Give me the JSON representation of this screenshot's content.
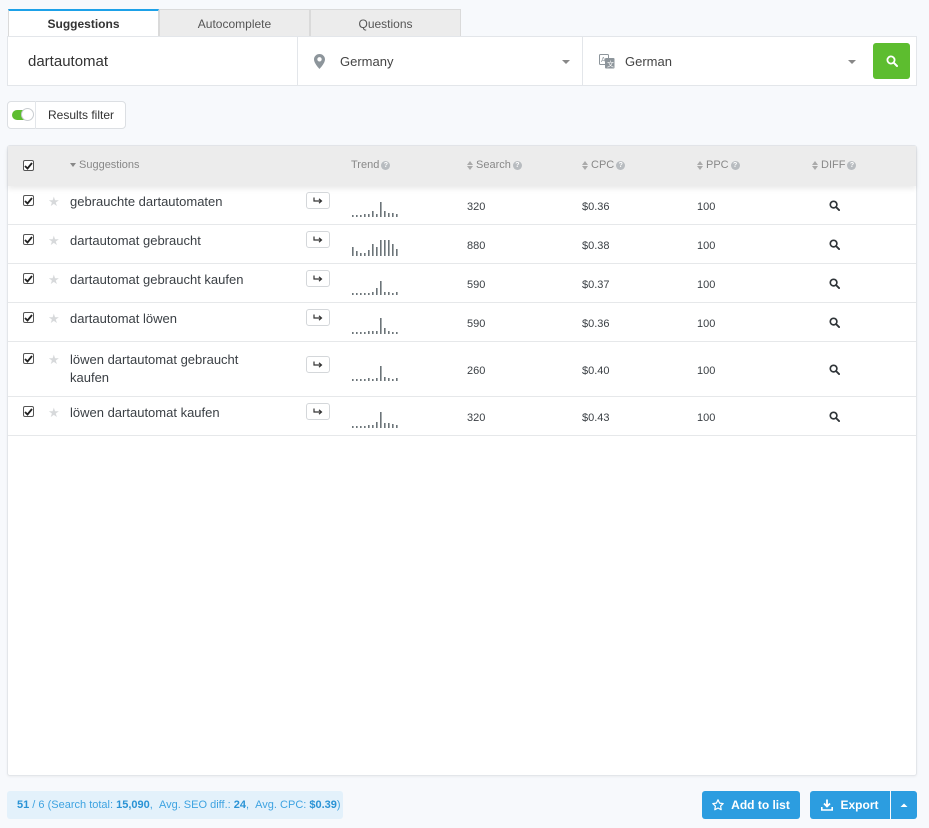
{
  "tabs": [
    {
      "label": "Suggestions",
      "active": true
    },
    {
      "label": "Autocomplete",
      "active": false
    },
    {
      "label": "Questions",
      "active": false
    }
  ],
  "search": {
    "keyword": "dartautomat",
    "location": "Germany",
    "language": "German",
    "location_icon": "map-pin-icon",
    "language_icon": "translate-icon",
    "submit_icon": "search-icon"
  },
  "filter": {
    "label": "Results filter",
    "enabled": true
  },
  "table": {
    "columns": {
      "suggestions": "Suggestions",
      "trend": "Trend",
      "search": "Search",
      "cpc": "CPC",
      "ppc": "PPC",
      "diff": "DIFF"
    },
    "rows": [
      {
        "keyword": "gebrauchte dartautomaten",
        "search": "320",
        "cpc": "$0.36",
        "ppc": "100",
        "trend": [
          2,
          2,
          2,
          3,
          3,
          6,
          3,
          14,
          6,
          4,
          4,
          3
        ]
      },
      {
        "keyword": "dartautomat gebraucht",
        "search": "880",
        "cpc": "$0.38",
        "ppc": "100",
        "trend": [
          8,
          5,
          3,
          3,
          6,
          11,
          8,
          15,
          15,
          15,
          11,
          7
        ]
      },
      {
        "keyword": "dartautomat gebraucht kaufen",
        "search": "590",
        "cpc": "$0.37",
        "ppc": "100",
        "trend": [
          2,
          2,
          2,
          2,
          2,
          3,
          7,
          13,
          3,
          3,
          2,
          3
        ]
      },
      {
        "keyword": "dartautomat löwen",
        "search": "590",
        "cpc": "$0.36",
        "ppc": "100",
        "trend": [
          2,
          2,
          2,
          2,
          3,
          3,
          3,
          15,
          6,
          3,
          2,
          2
        ]
      },
      {
        "keyword": "löwen dartautomat gebraucht kaufen",
        "search": "260",
        "cpc": "$0.40",
        "ppc": "100",
        "trend": [
          2,
          2,
          2,
          2,
          3,
          2,
          3,
          14,
          4,
          3,
          2,
          3
        ]
      },
      {
        "keyword": "löwen dartautomat kaufen",
        "search": "320",
        "cpc": "$0.43",
        "ppc": "100",
        "trend": [
          2,
          2,
          2,
          2,
          3,
          3,
          6,
          15,
          5,
          5,
          4,
          3
        ]
      }
    ]
  },
  "footer": {
    "count": "51",
    "shown": "6",
    "search_total_label": "Search total:",
    "search_total": "15,090",
    "seo_label": "Avg. SEO diff.:",
    "seo": "24",
    "cpc_label": "Avg. CPC:",
    "cpc": "$0.39",
    "add_label": "Add to list",
    "export_label": "Export"
  },
  "colors": {
    "accent": "#2c9de0",
    "go": "#5dbd2f",
    "tab_active": "#1da1e8"
  }
}
